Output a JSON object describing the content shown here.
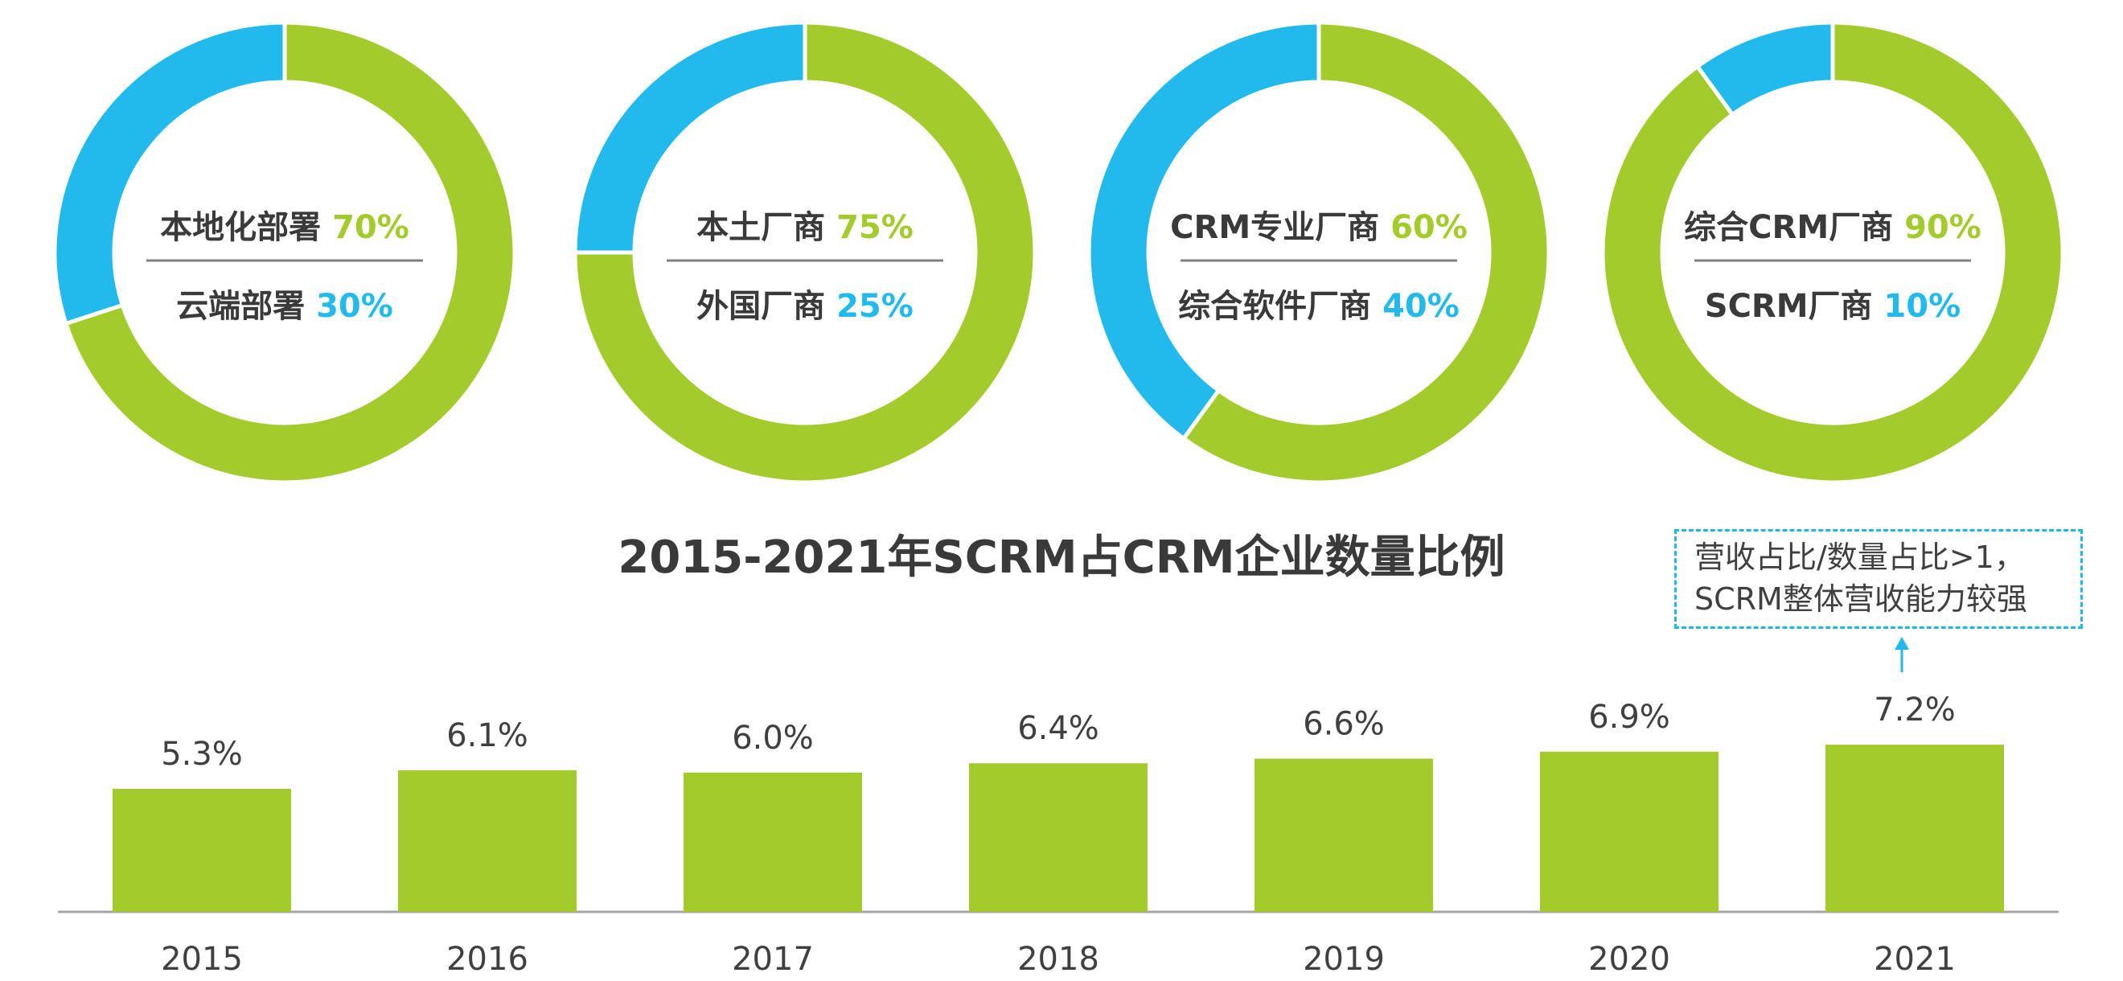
{
  "colors": {
    "green": "#a2cb2b",
    "blue": "#22b9ec",
    "text": "#3a3a3a",
    "divider": "#7f7f7f"
  },
  "chart_data": [
    {
      "type": "pie",
      "slices": [
        {
          "label": "本地化部署",
          "value": 70,
          "value_text": "70%",
          "color": "#a2cb2b"
        },
        {
          "label": "云端部署",
          "value": 30,
          "value_text": "30%",
          "color": "#22b9ec"
        }
      ]
    },
    {
      "type": "pie",
      "slices": [
        {
          "label": "本土厂商",
          "value": 75,
          "value_text": "75%",
          "color": "#a2cb2b"
        },
        {
          "label": "外国厂商",
          "value": 25,
          "value_text": "25%",
          "color": "#22b9ec"
        }
      ]
    },
    {
      "type": "pie",
      "slices": [
        {
          "label": "CRM专业厂商",
          "value": 60,
          "value_text": "60%",
          "color": "#a2cb2b"
        },
        {
          "label": "综合软件厂商",
          "value": 40,
          "value_text": "40%",
          "color": "#22b9ec"
        }
      ]
    },
    {
      "type": "pie",
      "slices": [
        {
          "label": "综合CRM厂商",
          "value": 90,
          "value_text": "90%",
          "color": "#a2cb2b"
        },
        {
          "label": "SCRM厂商",
          "value": 10,
          "value_text": "10%",
          "color": "#22b9ec"
        }
      ]
    },
    {
      "type": "bar",
      "title": "2015-2021年SCRM占CRM企业数量比例",
      "categories": [
        "2015",
        "2016",
        "2017",
        "2018",
        "2019",
        "2020",
        "2021"
      ],
      "values": [
        5.3,
        6.1,
        6.0,
        6.4,
        6.6,
        6.9,
        7.2
      ],
      "value_labels": [
        "5.3%",
        "6.1%",
        "6.0%",
        "6.4%",
        "6.6%",
        "6.9%",
        "7.2%"
      ],
      "annotation": {
        "lines": [
          "营收占比/数量占比>1，",
          "SCRM整体营收能力较强"
        ],
        "category": "2021"
      }
    }
  ]
}
